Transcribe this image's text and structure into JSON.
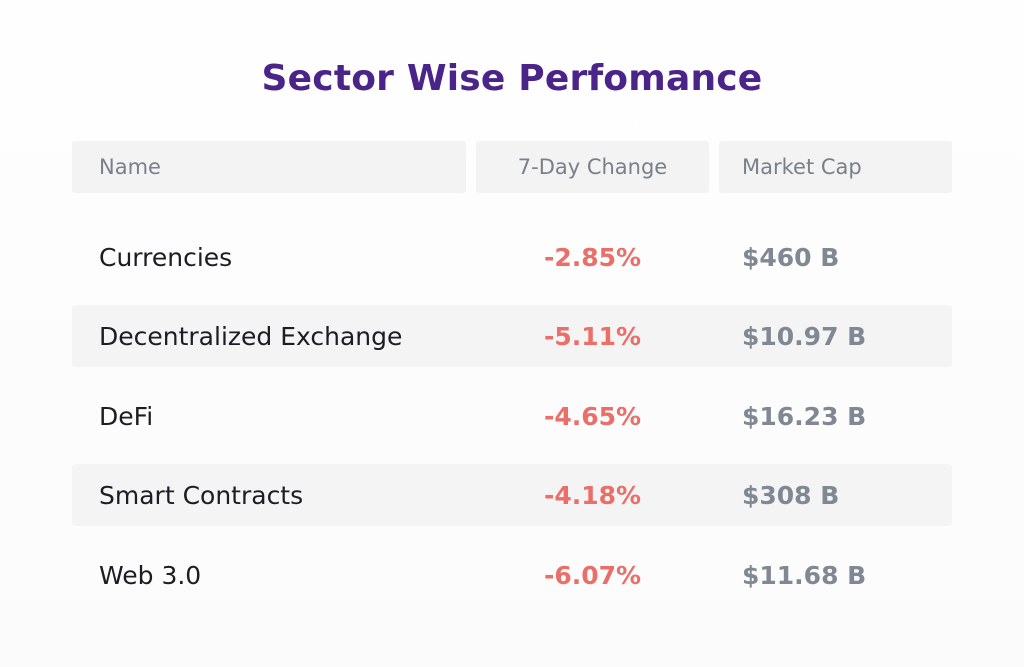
{
  "title": "Sector Wise Perfomance",
  "columns": {
    "name": "Name",
    "change": "7-Day Change",
    "cap": "Market Cap"
  },
  "rows": [
    {
      "name": "Currencies",
      "change": "-2.85%",
      "cap": "$460 B"
    },
    {
      "name": "Decentralized Exchange",
      "change": "-5.11%",
      "cap": "$10.97 B"
    },
    {
      "name": "DeFi",
      "change": "-4.65%",
      "cap": "$16.23 B"
    },
    {
      "name": "Smart Contracts",
      "change": "-4.18%",
      "cap": "$308 B"
    },
    {
      "name": "Web 3.0",
      "change": "-6.07%",
      "cap": "$11.68 B"
    }
  ],
  "colors": {
    "title": "#4a2488",
    "negative": "#ea6f68",
    "cap": "#7f8893",
    "header_bg": "#f3f3f4"
  }
}
